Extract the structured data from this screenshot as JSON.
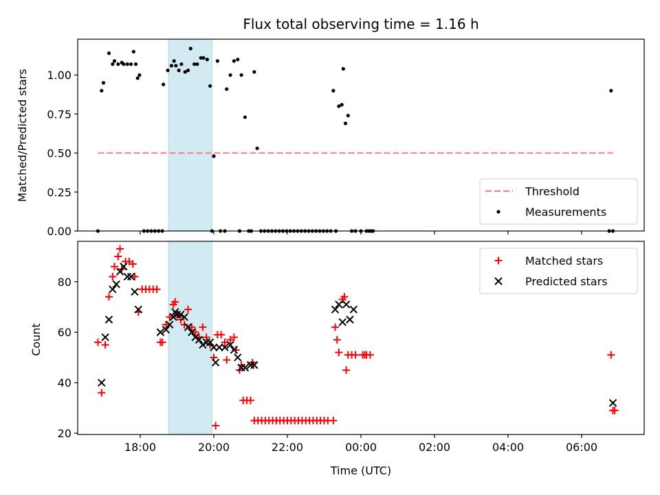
{
  "chart_data": {
    "title": "Flux total observing time = 1.16 h",
    "xlabel": "Time (UTC)",
    "x_ticks": [
      "18:00",
      "20:00",
      "22:00",
      "00:00",
      "02:00",
      "04:00",
      "06:00"
    ],
    "x_tick_hours": [
      18,
      20,
      22,
      24,
      26,
      28,
      30
    ],
    "xlim": [
      16.3,
      31.7
    ],
    "highlight_span": {
      "start": 18.77,
      "end": 19.95,
      "color": "#add8e6"
    },
    "panels": [
      {
        "id": "ratio",
        "type": "scatter",
        "ylabel": "Matched/Predicted stars",
        "ylim": [
          0.0,
          1.23
        ],
        "y_ticks": [
          0.0,
          0.25,
          0.5,
          0.75,
          1.0
        ],
        "y_tick_labels": [
          "0.00",
          "0.25",
          "0.50",
          "0.75",
          "1.00"
        ],
        "legend": {
          "position": "bottom-right",
          "entries": [
            "Threshold",
            "Measurements"
          ]
        },
        "series": [
          {
            "name": "Threshold",
            "style": "dashed-line",
            "color": "#ff7f7f",
            "x": [
              16.85,
              30.85
            ],
            "y": [
              0.5,
              0.5
            ]
          },
          {
            "name": "Measurements",
            "style": "dot",
            "color": "#000000",
            "x": [
              16.85,
              16.95,
              17.0,
              17.15,
              17.25,
              17.3,
              17.4,
              17.5,
              17.55,
              17.65,
              17.75,
              17.82,
              17.88,
              17.93,
              17.98,
              18.1,
              18.2,
              18.3,
              18.4,
              18.5,
              18.6,
              18.63,
              18.75,
              18.85,
              18.92,
              18.97,
              19.05,
              19.12,
              19.22,
              19.3,
              19.37,
              19.47,
              19.55,
              19.65,
              19.72,
              19.82,
              19.9,
              19.95,
              20.0,
              20.1,
              20.18,
              20.3,
              20.35,
              20.45,
              20.55,
              20.65,
              20.7,
              20.75,
              20.85,
              20.95,
              21.02,
              21.1,
              21.18,
              21.28,
              21.38,
              21.48,
              21.58,
              21.68,
              21.78,
              21.88,
              21.98,
              22.08,
              22.18,
              22.28,
              22.38,
              22.48,
              22.58,
              22.68,
              22.78,
              22.88,
              22.98,
              23.08,
              23.18,
              23.25,
              23.32,
              23.4,
              23.48,
              23.52,
              23.58,
              23.65,
              23.75,
              23.85,
              24.0,
              24.15,
              24.22,
              24.28,
              24.33,
              30.75,
              30.8,
              30.85
            ],
            "y": [
              0.0,
              0.9,
              0.95,
              1.14,
              1.07,
              1.09,
              1.07,
              1.08,
              1.07,
              1.07,
              1.07,
              1.15,
              1.07,
              0.98,
              1.0,
              0.0,
              0.0,
              0.0,
              0.0,
              0.0,
              0.0,
              0.94,
              1.03,
              1.06,
              1.09,
              1.06,
              1.03,
              1.07,
              1.02,
              1.03,
              1.17,
              1.07,
              1.07,
              1.11,
              1.11,
              1.1,
              0.93,
              0.0,
              0.48,
              1.09,
              0.0,
              0.0,
              0.91,
              1.0,
              1.09,
              1.1,
              0.0,
              1.0,
              0.73,
              0.0,
              0.0,
              1.02,
              0.53,
              0.0,
              0.0,
              0.0,
              0.0,
              0.0,
              0.0,
              0.0,
              0.0,
              0.0,
              0.0,
              0.0,
              0.0,
              0.0,
              0.0,
              0.0,
              0.0,
              0.0,
              0.0,
              0.0,
              0.0,
              0.9,
              0.0,
              0.8,
              0.81,
              1.04,
              0.69,
              0.74,
              0.0,
              0.0,
              0.0,
              0.0,
              0.0,
              0.0,
              0.0,
              0.0,
              0.9,
              0.0
            ]
          }
        ]
      },
      {
        "id": "count",
        "type": "scatter",
        "ylabel": "Count",
        "ylim": [
          19.5,
          96
        ],
        "y_ticks": [
          20,
          40,
          60,
          80
        ],
        "y_tick_labels": [
          "20",
          "40",
          "60",
          "80"
        ],
        "legend": {
          "position": "top-right",
          "entries": [
            "Matched stars",
            "Predicted stars"
          ]
        },
        "series": [
          {
            "name": "Matched stars",
            "style": "plus",
            "color": "#ff0000",
            "x": [
              16.85,
              16.95,
              17.05,
              17.15,
              17.25,
              17.3,
              17.4,
              17.45,
              17.5,
              17.6,
              17.7,
              17.8,
              17.85,
              17.95,
              18.05,
              18.15,
              18.25,
              18.35,
              18.45,
              18.55,
              18.6,
              18.7,
              18.8,
              18.9,
              18.95,
              19.0,
              19.1,
              19.2,
              19.3,
              19.4,
              19.5,
              19.6,
              19.7,
              19.8,
              19.9,
              20.0,
              20.05,
              20.1,
              20.2,
              20.3,
              20.35,
              20.45,
              20.55,
              20.6,
              20.7,
              20.75,
              20.8,
              20.9,
              21.0,
              21.05,
              21.1,
              21.2,
              21.3,
              21.4,
              21.5,
              21.6,
              21.7,
              21.8,
              21.9,
              22.0,
              22.1,
              22.2,
              22.3,
              22.4,
              22.5,
              22.6,
              22.7,
              22.8,
              22.9,
              23.0,
              23.1,
              23.25,
              23.3,
              23.35,
              23.4,
              23.5,
              23.55,
              23.6,
              23.65,
              23.75,
              23.85,
              24.05,
              24.1,
              24.15,
              24.25,
              30.8,
              30.85,
              30.9
            ],
            "y": [
              56,
              36,
              55,
              74,
              82,
              86,
              90,
              93,
              85,
              88,
              88,
              87,
              82,
              68,
              77,
              77,
              77,
              77,
              77,
              56,
              56,
              63,
              66,
              71,
              72,
              67,
              65,
              63,
              69,
              62,
              60,
              58,
              62,
              58,
              55,
              50,
              23,
              59,
              59,
              56,
              49,
              57,
              58,
              53,
              45,
              47,
              33,
              33,
              33,
              48,
              25,
              25,
              25,
              25,
              25,
              25,
              25,
              25,
              25,
              25,
              25,
              25,
              25,
              25,
              25,
              25,
              25,
              25,
              25,
              25,
              25,
              25,
              62,
              57,
              52,
              73,
              74,
              45,
              51,
              51,
              51,
              51,
              51,
              51,
              51,
              51,
              29,
              29
            ]
          },
          {
            "name": "Predicted stars",
            "style": "x",
            "color": "#000000",
            "x": [
              16.95,
              17.05,
              17.15,
              17.25,
              17.35,
              17.45,
              17.55,
              17.65,
              17.75,
              17.85,
              17.95,
              18.55,
              18.7,
              18.8,
              18.9,
              18.95,
              19.0,
              19.1,
              19.2,
              19.3,
              19.4,
              19.5,
              19.6,
              19.7,
              19.8,
              19.9,
              20.0,
              20.05,
              20.15,
              20.3,
              20.45,
              20.55,
              20.65,
              20.75,
              20.85,
              21.0,
              21.1,
              23.3,
              23.4,
              23.5,
              23.6,
              23.7,
              23.8,
              30.85
            ],
            "y": [
              40,
              58,
              65,
              77,
              79,
              84,
              86,
              82,
              82,
              76,
              69,
              60,
              61,
              63,
              66,
              68,
              67,
              67,
              66,
              62,
              60,
              58,
              57,
              55,
              56,
              56,
              54,
              48,
              54,
              54,
              55,
              53,
              50,
              46,
              46,
              47,
              47,
              69,
              71,
              64,
              71,
              65,
              69,
              32
            ]
          }
        ]
      }
    ]
  }
}
